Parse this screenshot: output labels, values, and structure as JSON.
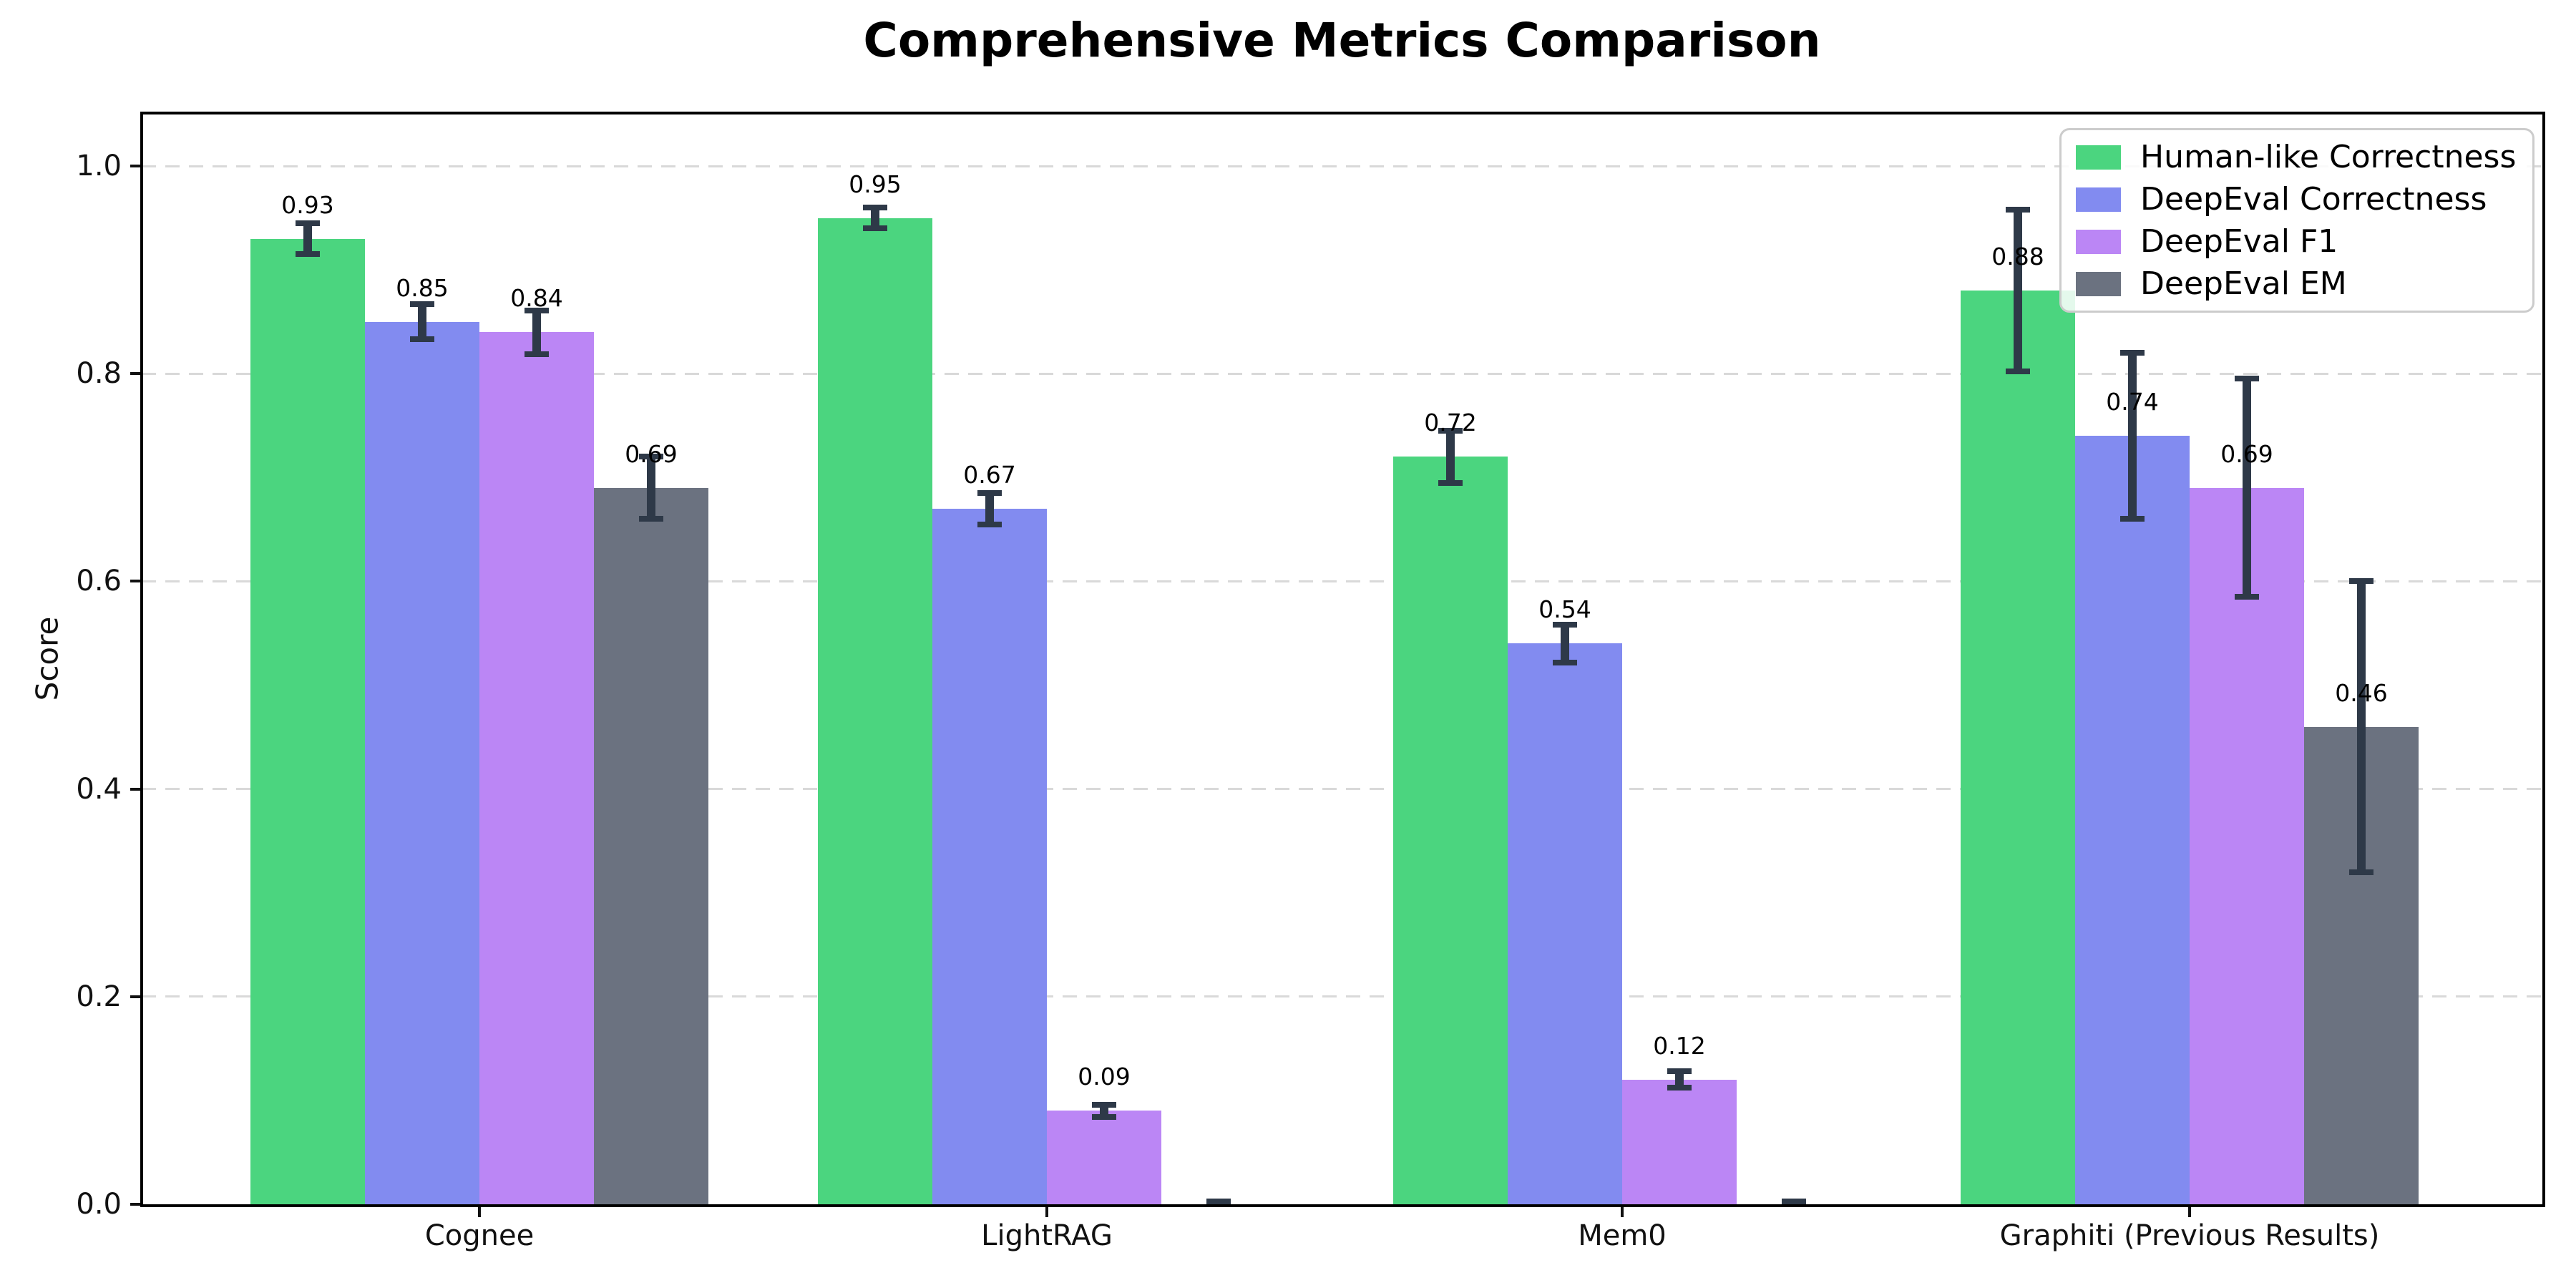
{
  "title": "Comprehensive Metrics Comparison",
  "chart_data": {
    "type": "bar",
    "title": "Comprehensive Metrics Comparison",
    "xlabel": "",
    "ylabel": "Score",
    "categories": [
      "Cognee",
      "LightRAG",
      "Mem0",
      "Graphiti (Previous Results)"
    ],
    "series": [
      {
        "name": "Human-like Correctness",
        "color": "#4bd57f",
        "values": [
          0.93,
          0.95,
          0.72,
          0.88
        ],
        "errors": [
          0.015,
          0.01,
          0.025,
          0.078
        ],
        "labels": [
          "0.93",
          "0.95",
          "0.72",
          "0.88"
        ]
      },
      {
        "name": "DeepEval Correctness",
        "color": "#828bf0",
        "values": [
          0.85,
          0.67,
          0.54,
          0.74
        ],
        "errors": [
          0.017,
          0.015,
          0.018,
          0.08
        ],
        "labels": [
          "0.85",
          "0.67",
          "0.54",
          "0.74"
        ]
      },
      {
        "name": "DeepEval F1",
        "color": "#bb86f5",
        "values": [
          0.84,
          0.09,
          0.12,
          0.69
        ],
        "errors": [
          0.021,
          0.006,
          0.008,
          0.105
        ],
        "labels": [
          "0.84",
          "0.09",
          "0.12",
          "0.69"
        ]
      },
      {
        "name": "DeepEval EM",
        "color": "#6b7280",
        "values": [
          0.69,
          0.0,
          0.0,
          0.46
        ],
        "errors": [
          0.03,
          0.003,
          0.003,
          0.14
        ],
        "labels": [
          "0.69",
          "",
          "",
          "0.46"
        ]
      }
    ],
    "yticks": [
      "0.0",
      "0.2",
      "0.4",
      "0.6",
      "0.8",
      "1.0"
    ],
    "ylim": [
      0,
      1.05
    ],
    "grid": "horizontal-dashed",
    "grid_color": "#d9d9d9",
    "axis_color": "#000000",
    "errorbar_color": "#2e3948",
    "legend_position": "upper-right",
    "background": "#ffffff"
  }
}
